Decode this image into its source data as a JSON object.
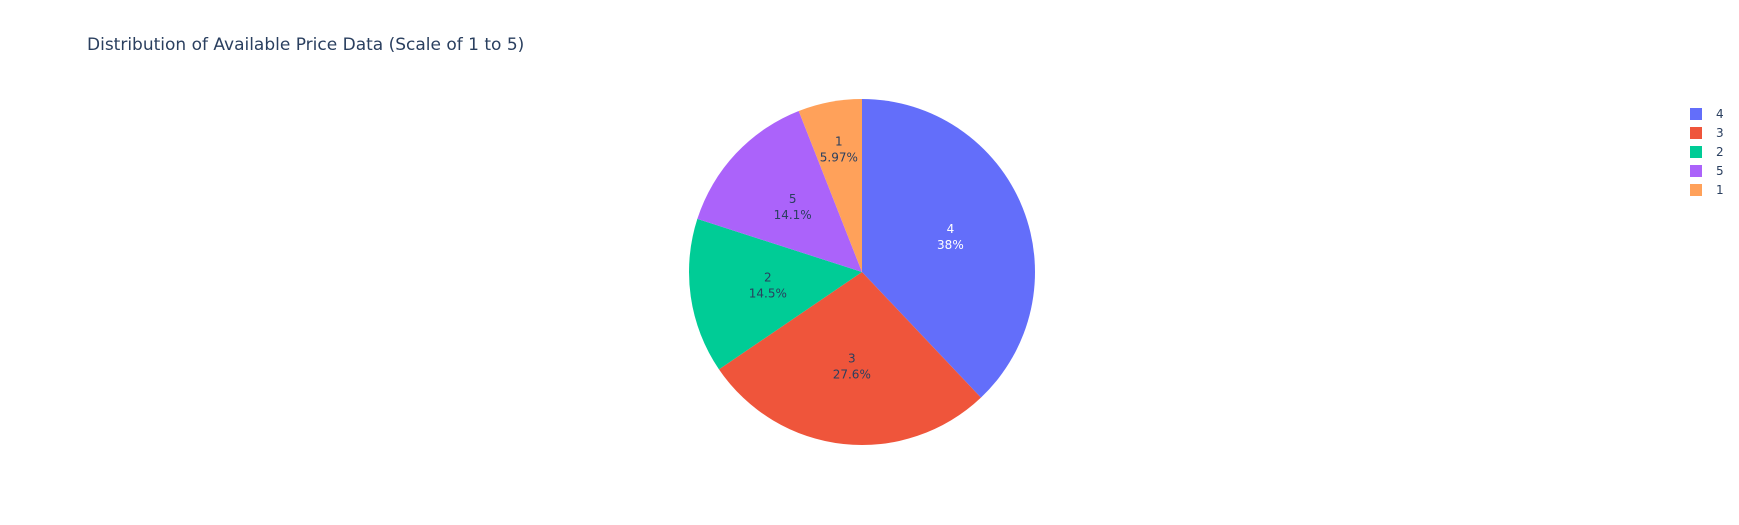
{
  "chart_data": {
    "type": "pie",
    "title": "Distribution of Available Price Data (Scale of 1 to 5)",
    "labels": [
      "4",
      "3",
      "2",
      "5",
      "1"
    ],
    "values": [
      38.0,
      27.6,
      14.5,
      14.1,
      5.97
    ],
    "percent_labels": [
      "38%",
      "27.6%",
      "14.5%",
      "14.1%",
      "5.97%"
    ],
    "colors": [
      "#636efa",
      "#ef553b",
      "#00cc96",
      "#ab63fa",
      "#ffa15a"
    ],
    "label_text_colors": [
      "#ffffff",
      "#2a3f5f",
      "#2a3f5f",
      "#2a3f5f",
      "#2a3f5f"
    ],
    "direction": "clockwise",
    "start_angle_deg": 90,
    "legend": {
      "position": "top-right",
      "items": [
        "4",
        "3",
        "2",
        "5",
        "1"
      ]
    }
  }
}
